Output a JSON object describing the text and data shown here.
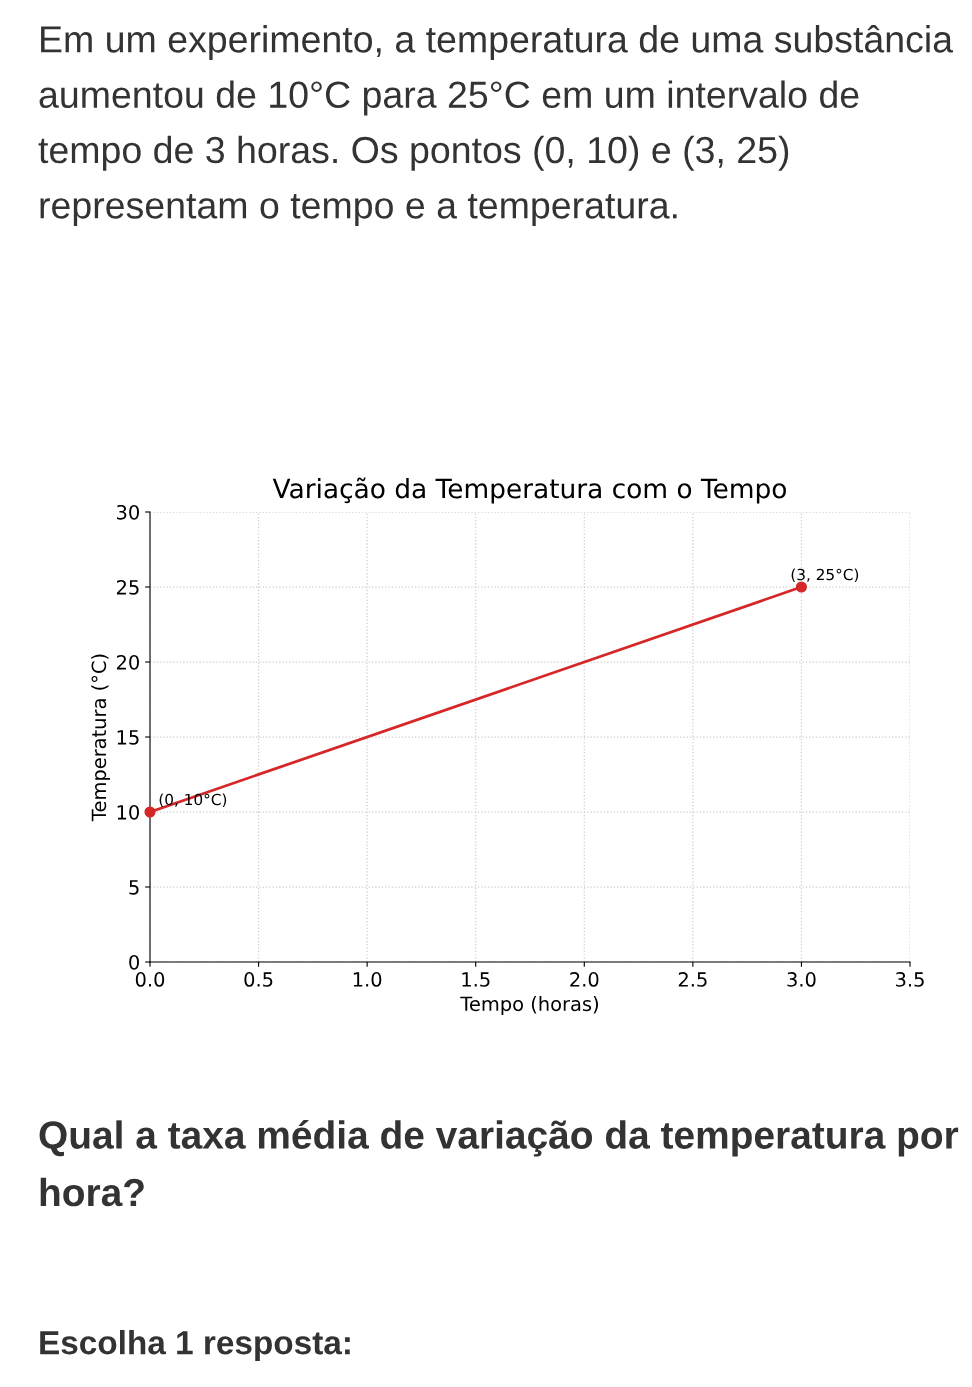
{
  "chart_data": {
    "type": "line",
    "title": "Variação da Temperatura com o Tempo",
    "xlabel": "Tempo (horas)",
    "ylabel": "Temperatura (°C)",
    "x": [
      0,
      3
    ],
    "series": [
      {
        "color": "#d62728",
        "values": [
          10,
          25
        ]
      }
    ],
    "marker": "circle",
    "grid": true,
    "xlim": [
      0,
      3.5
    ],
    "ylim": [
      0,
      30
    ],
    "xticks": [
      {
        "value": 0,
        "label": "0.0"
      },
      0.5,
      {
        "value": 1,
        "label": "1.0"
      },
      1.5,
      {
        "value": 2,
        "label": "2.0"
      },
      2.5,
      {
        "value": 3,
        "label": "3.0"
      },
      3.5
    ],
    "yticks": [
      0,
      5,
      10,
      15,
      20,
      25,
      30
    ],
    "annotations": [
      "Em um experimento, a temperatura de uma substância aumentou de 10°C para 25°C em um intervalo de tempo de 3 horas. Os pontos (0, 10) e (3, 25) representam o tempo e a temperatura.",
      {
        "text": "(3, 25°C)",
        "x": 3,
        "y": 25
      },
      {
        "text": "(0, 10°C)",
        "x": 0,
        "y": 10
      },
      "Qual a taxa média de variação da temperatura por hora?",
      "Escolha 1 resposta:"
    ]
  }
}
